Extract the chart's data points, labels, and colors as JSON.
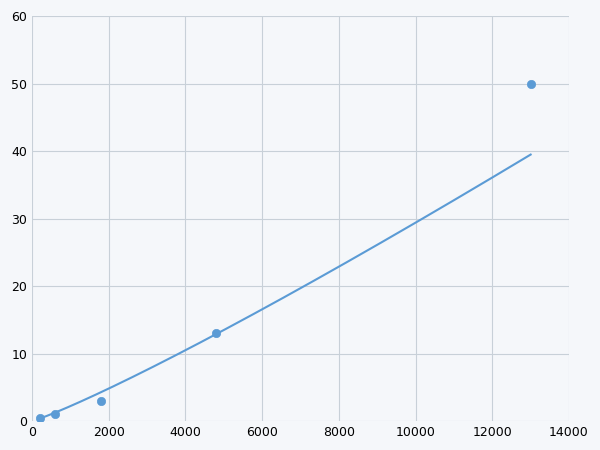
{
  "x_data": [
    200,
    600,
    1800,
    4800,
    13000
  ],
  "y_data": [
    0.5,
    1.0,
    3.0,
    13.0,
    50.0
  ],
  "line_color": "#5b9bd5",
  "marker_color": "#5b9bd5",
  "marker_size": 6,
  "line_width": 1.5,
  "xlim": [
    0,
    14000
  ],
  "ylim": [
    0,
    60
  ],
  "xticks": [
    0,
    2000,
    4000,
    6000,
    8000,
    10000,
    12000,
    14000
  ],
  "yticks": [
    0,
    10,
    20,
    30,
    40,
    50,
    60
  ],
  "grid_color": "#c8d0d8",
  "background_color": "#f5f7fa",
  "tick_fontsize": 9
}
